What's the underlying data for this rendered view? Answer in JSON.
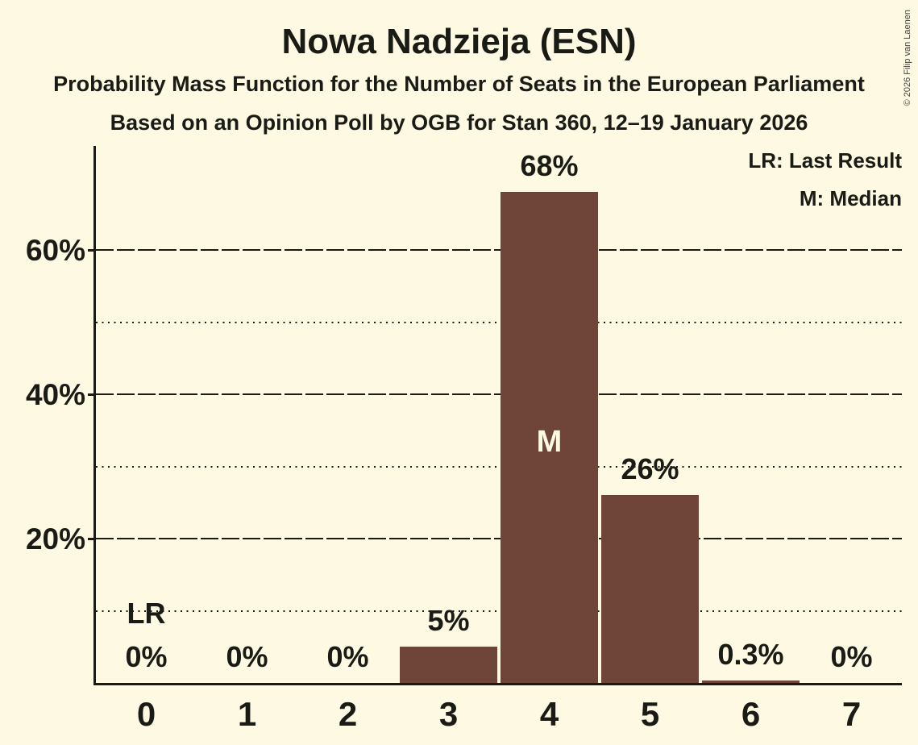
{
  "title": "Nowa Nadzieja (ESN)",
  "subtitles": [
    "Probability Mass Function for the Number of Seats in the European Parliament",
    "Based on an Opinion Poll by OGB for Stan 360, 12–19 January 2026"
  ],
  "copyright": "© 2026 Filip van Laenen",
  "legend": {
    "last_result": "LR: Last Result",
    "median": "M: Median"
  },
  "colors": {
    "background": "#fdf9e3",
    "bar": "#6f4539",
    "text": "#1b1b16"
  },
  "chart_data": {
    "type": "bar",
    "title": "Nowa Nadzieja (ESN)",
    "categories": [
      "0",
      "1",
      "2",
      "3",
      "4",
      "5",
      "6",
      "7"
    ],
    "values": [
      0,
      0,
      0,
      5,
      68,
      26,
      0.3,
      0
    ],
    "value_labels": [
      "0%",
      "0%",
      "0%",
      "5%",
      "68%",
      "26%",
      "0.3%",
      "0%"
    ],
    "xlabel": "",
    "ylabel": "",
    "ylim": [
      0,
      74
    ],
    "major_gridlines": [
      {
        "value": 20,
        "label": "20%"
      },
      {
        "value": 40,
        "label": "40%"
      },
      {
        "value": 60,
        "label": "60%"
      }
    ],
    "minor_gridlines": [
      10,
      30,
      50
    ],
    "grid": true,
    "legend_position": "top-right",
    "annotations": {
      "median": {
        "seat_index": 4,
        "label": "M"
      },
      "last_result": {
        "seat_index": 0,
        "label": "LR"
      }
    }
  }
}
